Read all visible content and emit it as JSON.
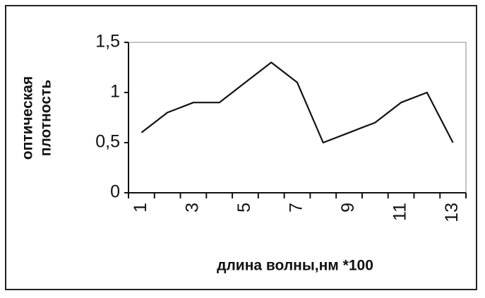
{
  "chart_data": {
    "type": "line",
    "y_label": [
      "оптическая",
      "плотность"
    ],
    "x_label": "длина волны,нм *100",
    "categories": [
      "1",
      null,
      "3",
      null,
      "5",
      null,
      "7",
      null,
      "9",
      null,
      "11",
      null,
      "13"
    ],
    "series": [
      {
        "color": "#111111",
        "values": [
          0.6,
          0.8,
          0.9,
          0.9,
          1.1,
          1.3,
          1.1,
          0.5,
          0.6,
          0.7,
          0.9,
          1.0,
          0.5
        ]
      }
    ],
    "ylim": [
      0,
      1.5
    ],
    "yticks": [
      0,
      {
        "value": 0.5,
        "label": "0,5"
      },
      1,
      {
        "value": 1.5,
        "label": "1,5"
      }
    ],
    "grid": false
  }
}
